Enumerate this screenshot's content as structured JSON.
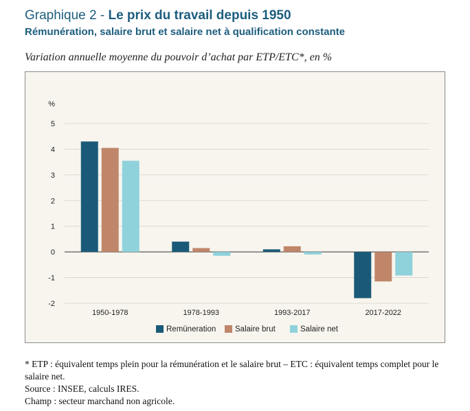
{
  "header": {
    "title_prefix": "Graphique 2 - ",
    "title_main": "Le prix du travail depuis 1950",
    "subtitle": "Rémunération, salaire brut et salaire net à qualification constante"
  },
  "caption": "Variation annuelle moyenne du pouvoir d’achat par ETP/ETC*, en %",
  "chart_data": {
    "type": "bar",
    "title": "",
    "xlabel": "",
    "ylabel": "%",
    "ylim": [
      -2,
      5
    ],
    "yticks": [
      5,
      4,
      3,
      2,
      1,
      0,
      -1,
      -2
    ],
    "grid": true,
    "legend_position": "bottom",
    "categories": [
      "1950-1978",
      "1978-1993",
      "1993-2017",
      "2017-2022"
    ],
    "series": [
      {
        "name": "Remüneration",
        "color": "#1a5a78",
        "values": [
          4.3,
          0.4,
          0.1,
          -1.8
        ]
      },
      {
        "name": "Salaire brut",
        "color": "#c0866a",
        "values": [
          4.05,
          0.15,
          0.22,
          -1.15
        ]
      },
      {
        "name": "Salaire net",
        "color": "#8fd2dc",
        "values": [
          3.55,
          -0.15,
          -0.1,
          -0.92
        ]
      }
    ]
  },
  "notes": {
    "line1": "* ETP : équivalent temps plein pour la rémunération et le salaire brut – ETC : équivalent temps complet pour le salaire net.",
    "line2": "Source : INSEE, calculs IRES.",
    "line3": "Champ : secteur marchand non agricole."
  }
}
